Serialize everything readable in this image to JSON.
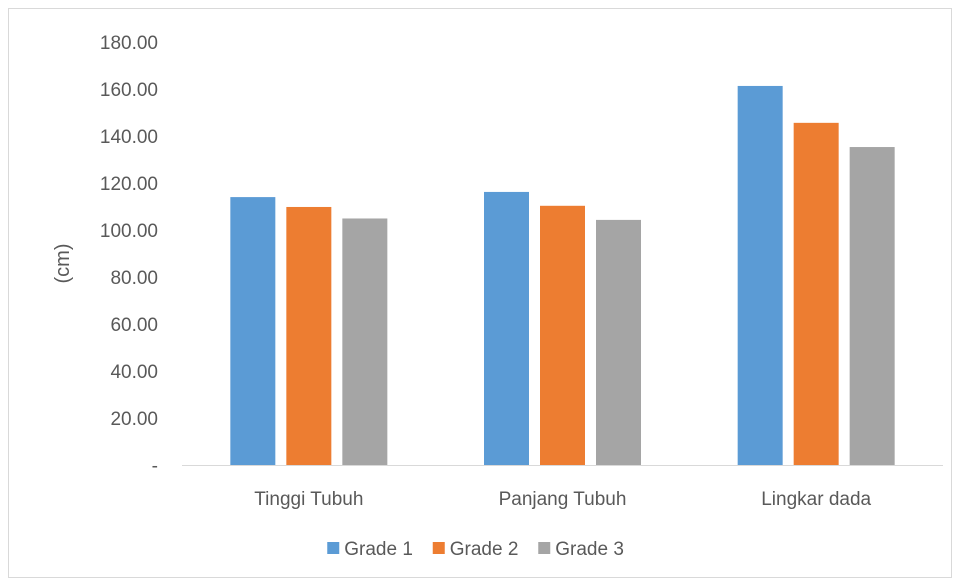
{
  "chart_data": {
    "type": "bar",
    "title": "",
    "xlabel": "",
    "ylabel": "(cm)",
    "ylim": [
      0,
      180
    ],
    "ytick_values": [
      0,
      20,
      40,
      60,
      80,
      100,
      120,
      140,
      160,
      180
    ],
    "ytick_labels": [
      "-",
      "20.00",
      "40.00",
      "60.00",
      "80.00",
      "100.00",
      "120.00",
      "140.00",
      "160.00",
      "180.00"
    ],
    "categories": [
      "Tinggi Tubuh",
      "Panjang Tubuh",
      "Lingkar dada"
    ],
    "series": [
      {
        "name": "Grade 1",
        "color": "#5b9bd5",
        "values": [
          114.0,
          116.2,
          161.3
        ]
      },
      {
        "name": "Grade 2",
        "color": "#ed7d31",
        "values": [
          109.8,
          110.3,
          145.6
        ]
      },
      {
        "name": "Grade 3",
        "color": "#a5a5a5",
        "values": [
          104.9,
          104.3,
          135.3
        ]
      }
    ],
    "grid": false,
    "legend_position": "bottom"
  }
}
